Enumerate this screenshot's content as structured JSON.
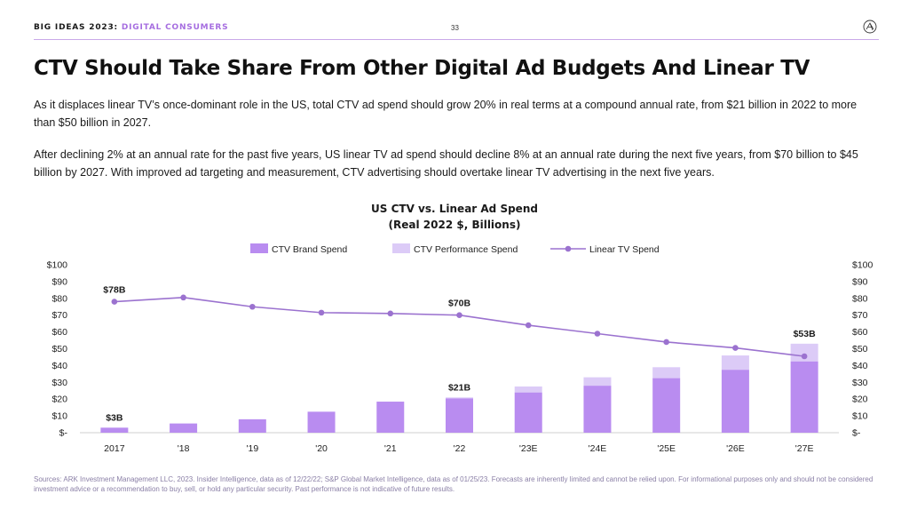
{
  "header": {
    "brand": "BIG IDEAS 2023",
    "separator": ": ",
    "section": "DIGITAL CONSUMERS",
    "page_number": "33"
  },
  "title": "CTV Should Take Share From Other Digital Ad Budgets And Linear TV",
  "paragraphs": [
    "As it displaces linear TV’s once-dominant role in the US, total CTV ad spend should grow 20% in real terms at a compound annual rate, from $21 billion in 2022 to more than $50 billion in 2027.",
    "After declining 2% at an annual rate for the past five years, US linear TV ad spend should decline 8% at an annual rate during the next five years, from $70 billion to $45 billion by 2027. With improved ad targeting and measurement, CTV advertising should overtake linear TV advertising in the next five years."
  ],
  "chart_data": {
    "type": "bar",
    "title_line1": "US CTV vs. Linear Ad Spend",
    "title_line2": "(Real 2022 $, Billions)",
    "categories": [
      "2017",
      "'18",
      "'19",
      "'20",
      "'21",
      "'22",
      "'23E",
      "'24E",
      "'25E",
      "'26E",
      "'27E"
    ],
    "series": [
      {
        "name": "CTV Brand Spend",
        "kind": "stacked-bar",
        "color": "#b98cf0",
        "values": [
          3,
          5.5,
          8,
          12.5,
          18.5,
          20.5,
          24,
          28,
          32.5,
          37.5,
          42.5
        ]
      },
      {
        "name": "CTV Performance Spend",
        "kind": "stacked-bar",
        "color": "#dccbf7",
        "values": [
          0,
          0,
          0,
          0,
          0,
          0.5,
          3.5,
          5,
          6.5,
          8.5,
          10.5
        ]
      },
      {
        "name": "Linear TV Spend",
        "kind": "line",
        "color": "#9b72cf",
        "values": [
          78,
          80.5,
          75,
          71.5,
          71,
          70,
          64,
          59,
          54,
          50.5,
          45.5
        ]
      }
    ],
    "annotations": [
      {
        "label": "$78B",
        "series": "Linear TV Spend",
        "index": 0
      },
      {
        "label": "$70B",
        "series": "Linear TV Spend",
        "index": 5
      },
      {
        "label": "$3B",
        "series": "CTV",
        "index": 0
      },
      {
        "label": "$21B",
        "series": "CTV",
        "index": 5
      },
      {
        "label": "$53B",
        "series": "CTV",
        "index": 10
      }
    ],
    "y_ticks": [
      "$-",
      "$10",
      "$20",
      "$30",
      "$40",
      "$50",
      "$60",
      "$70",
      "$80",
      "$90",
      "$100"
    ],
    "ylim": [
      0,
      100
    ],
    "legend_position": "top-center",
    "grid": false
  },
  "source": "Sources: ARK Investment Management LLC, 2023. Insider Intelligence, data as of 12/22/22; S&P Global Market Intelligence, data as of 01/25/23. Forecasts are inherently limited and cannot be relied upon. For informational purposes only and should not be considered investment advice or a recommendation to buy, sell, or hold any particular security. Past performance is not indicative of future results."
}
